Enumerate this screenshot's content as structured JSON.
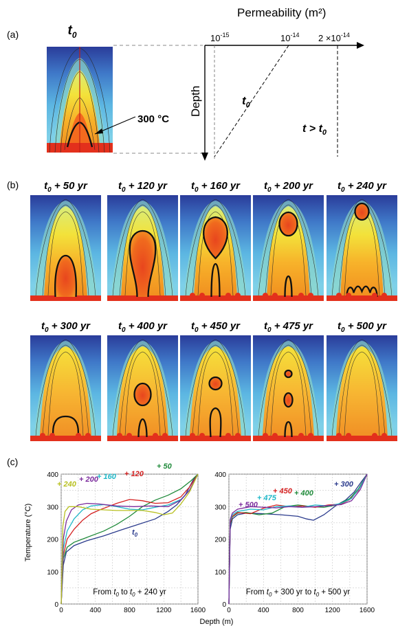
{
  "panel_labels": {
    "a": "(a)",
    "b": "(b)",
    "c": "(c)"
  },
  "panel_a": {
    "sim_title_base": "t",
    "sim_title_sub": "0",
    "temperature_label": "300 °C",
    "permeability_title": "Permeability (m²)",
    "ticks": [
      {
        "mant": "10",
        "exp": "-15"
      },
      {
        "mant": "10",
        "exp": "-14"
      },
      {
        "mant": "2 ×10",
        "exp": "-14"
      }
    ],
    "depth_label": "Depth",
    "curve_t0_base": "t",
    "curve_t0_sub": "0",
    "curve_tgt_base": "t > t",
    "curve_tgt_sub": "0"
  },
  "panel_b": {
    "frames": [
      {
        "label": "+ 50 yr"
      },
      {
        "label": "+ 120 yr"
      },
      {
        "label": "+ 160 yr"
      },
      {
        "label": "+ 200 yr"
      },
      {
        "label": "+ 240 yr"
      },
      {
        "label": "+ 300 yr"
      },
      {
        "label": "+ 400 yr"
      },
      {
        "label": "+ 450 yr"
      },
      {
        "label": "+ 475 yr"
      },
      {
        "label": "+ 500 yr"
      }
    ],
    "title_base": "t",
    "title_sub": "0"
  },
  "chart_data": [
    {
      "type": "line",
      "id": "c-left",
      "ylabel": "Temperature (°C)",
      "xlim": [
        0,
        1600
      ],
      "ylim": [
        0,
        400
      ],
      "xticks": [
        0,
        400,
        800,
        1200,
        1600
      ],
      "yticks": [
        0,
        100,
        200,
        300,
        400
      ],
      "grid": true,
      "caption": {
        "a": "From ",
        "b": "t",
        "c": "0",
        "d": "  to  ",
        "e": "t",
        "f": "0",
        "g": " + 240 yr"
      },
      "series": [
        {
          "name": "t0",
          "color": "#2a3a8c",
          "label_parts": [
            "t",
            "0"
          ],
          "points": [
            [
              0,
              0
            ],
            [
              25,
              120
            ],
            [
              60,
              160
            ],
            [
              150,
              180
            ],
            [
              300,
              195
            ],
            [
              500,
              210
            ],
            [
              700,
              228
            ],
            [
              900,
              245
            ],
            [
              1100,
              262
            ],
            [
              1250,
              285
            ],
            [
              1350,
              305
            ],
            [
              1450,
              335
            ],
            [
              1540,
              380
            ],
            [
              1600,
              400
            ]
          ]
        },
        {
          "name": "+ 50",
          "color": "#1f8a3a",
          "label_parts": [
            "+ 50"
          ],
          "points": [
            [
              0,
              0
            ],
            [
              25,
              140
            ],
            [
              70,
              175
            ],
            [
              150,
              190
            ],
            [
              300,
              205
            ],
            [
              500,
              225
            ],
            [
              650,
              245
            ],
            [
              800,
              270
            ],
            [
              950,
              300
            ],
            [
              1100,
              320
            ],
            [
              1250,
              335
            ],
            [
              1400,
              355
            ],
            [
              1520,
              380
            ],
            [
              1600,
              400
            ]
          ]
        },
        {
          "name": "+ 120",
          "color": "#d42020",
          "label_parts": [
            "+ 120"
          ],
          "points": [
            [
              0,
              0
            ],
            [
              25,
              150
            ],
            [
              70,
              200
            ],
            [
              150,
              230
            ],
            [
              250,
              258
            ],
            [
              350,
              278
            ],
            [
              450,
              290
            ],
            [
              550,
              300
            ],
            [
              650,
              310
            ],
            [
              800,
              322
            ],
            [
              950,
              318
            ],
            [
              1100,
              310
            ],
            [
              1250,
              312
            ],
            [
              1400,
              330
            ],
            [
              1500,
              360
            ],
            [
              1600,
              400
            ]
          ]
        },
        {
          "name": "+ 160",
          "color": "#20b8c8",
          "label_parts": [
            "+ 160"
          ],
          "points": [
            [
              0,
              0
            ],
            [
              25,
              170
            ],
            [
              70,
              225
            ],
            [
              150,
              262
            ],
            [
              250,
              290
            ],
            [
              350,
              302
            ],
            [
              500,
              306
            ],
            [
              650,
              300
            ],
            [
              800,
              292
            ],
            [
              950,
              290
            ],
            [
              1100,
              298
            ],
            [
              1250,
              305
            ],
            [
              1400,
              322
            ],
            [
              1500,
              350
            ],
            [
              1600,
              400
            ]
          ]
        },
        {
          "name": "+ 200",
          "color": "#7a2a9c",
          "label_parts": [
            "+ 200"
          ],
          "points": [
            [
              0,
              0
            ],
            [
              25,
              200
            ],
            [
              60,
              255
            ],
            [
              120,
              290
            ],
            [
              200,
              305
            ],
            [
              300,
              310
            ],
            [
              450,
              308
            ],
            [
              650,
              302
            ],
            [
              850,
              300
            ],
            [
              1050,
              302
            ],
            [
              1250,
              300
            ],
            [
              1400,
              320
            ],
            [
              1500,
              350
            ],
            [
              1600,
              400
            ]
          ]
        },
        {
          "name": "+ 240",
          "color": "#b8c020",
          "label_parts": [
            "+ 240"
          ],
          "points": [
            [
              0,
              0
            ],
            [
              20,
              240
            ],
            [
              45,
              285
            ],
            [
              90,
              300
            ],
            [
              200,
              300
            ],
            [
              350,
              292
            ],
            [
              500,
              290
            ],
            [
              650,
              288
            ],
            [
              800,
              288
            ],
            [
              950,
              288
            ],
            [
              1100,
              282
            ],
            [
              1200,
              275
            ],
            [
              1300,
              280
            ],
            [
              1400,
              308
            ],
            [
              1500,
              345
            ],
            [
              1600,
              400
            ]
          ]
        }
      ]
    },
    {
      "type": "line",
      "id": "c-right",
      "xlabel": "Depth  (m)",
      "xlim": [
        0,
        1600
      ],
      "ylim": [
        0,
        400
      ],
      "xticks": [
        0,
        400,
        800,
        1200,
        1600
      ],
      "yticks": [
        0,
        100,
        200,
        300,
        400
      ],
      "grid": true,
      "caption": {
        "a": "From ",
        "b": "t",
        "c": "0",
        "d": " + 300 yr   to  ",
        "e": "t",
        "f": "0",
        "g": " + 500 yr"
      },
      "series": [
        {
          "name": "+ 300",
          "color": "#2a3a8c",
          "label_parts": [
            "+ 300"
          ],
          "points": [
            [
              0,
              0
            ],
            [
              15,
              230
            ],
            [
              40,
              262
            ],
            [
              100,
              275
            ],
            [
              200,
              280
            ],
            [
              400,
              278
            ],
            [
              600,
              275
            ],
            [
              800,
              270
            ],
            [
              900,
              262
            ],
            [
              980,
              258
            ],
            [
              1100,
              275
            ],
            [
              1250,
              305
            ],
            [
              1350,
              320
            ],
            [
              1450,
              345
            ],
            [
              1530,
              375
            ],
            [
              1600,
              400
            ]
          ]
        },
        {
          "name": "+ 400",
          "color": "#1f8a3a",
          "label_parts": [
            "+ 400"
          ],
          "points": [
            [
              0,
              0
            ],
            [
              15,
              245
            ],
            [
              40,
              268
            ],
            [
              100,
              280
            ],
            [
              200,
              282
            ],
            [
              350,
              275
            ],
            [
              500,
              280
            ],
            [
              650,
              300
            ],
            [
              800,
              305
            ],
            [
              950,
              300
            ],
            [
              1100,
              298
            ],
            [
              1250,
              305
            ],
            [
              1400,
              325
            ],
            [
              1500,
              355
            ],
            [
              1600,
              400
            ]
          ]
        },
        {
          "name": "+ 450",
          "color": "#d42020",
          "label_parts": [
            "+ 450"
          ],
          "points": [
            [
              0,
              0
            ],
            [
              15,
              250
            ],
            [
              40,
              270
            ],
            [
              100,
              282
            ],
            [
              250,
              278
            ],
            [
              400,
              295
            ],
            [
              550,
              305
            ],
            [
              700,
              300
            ],
            [
              850,
              302
            ],
            [
              1000,
              298
            ],
            [
              1150,
              305
            ],
            [
              1300,
              308
            ],
            [
              1400,
              322
            ],
            [
              1500,
              350
            ],
            [
              1600,
              400
            ]
          ]
        },
        {
          "name": "+ 475",
          "color": "#20b8c8",
          "label_parts": [
            "+ 475"
          ],
          "points": [
            [
              0,
              0
            ],
            [
              15,
              255
            ],
            [
              40,
              275
            ],
            [
              100,
              285
            ],
            [
              250,
              292
            ],
            [
              400,
              290
            ],
            [
              550,
              300
            ],
            [
              700,
              302
            ],
            [
              850,
              298
            ],
            [
              1000,
              305
            ],
            [
              1150,
              302
            ],
            [
              1300,
              310
            ],
            [
              1420,
              325
            ],
            [
              1520,
              360
            ],
            [
              1600,
              400
            ]
          ]
        },
        {
          "name": "+ 500",
          "color": "#7a2a9c",
          "label_parts": [
            "+ 500"
          ],
          "points": [
            [
              0,
              0
            ],
            [
              15,
              260
            ],
            [
              40,
              280
            ],
            [
              100,
              292
            ],
            [
              250,
              300
            ],
            [
              400,
              298
            ],
            [
              550,
              296
            ],
            [
              700,
              300
            ],
            [
              850,
              298
            ],
            [
              1000,
              300
            ],
            [
              1150,
              303
            ],
            [
              1300,
              306
            ],
            [
              1420,
              318
            ],
            [
              1520,
              352
            ],
            [
              1600,
              400
            ]
          ]
        }
      ]
    }
  ]
}
